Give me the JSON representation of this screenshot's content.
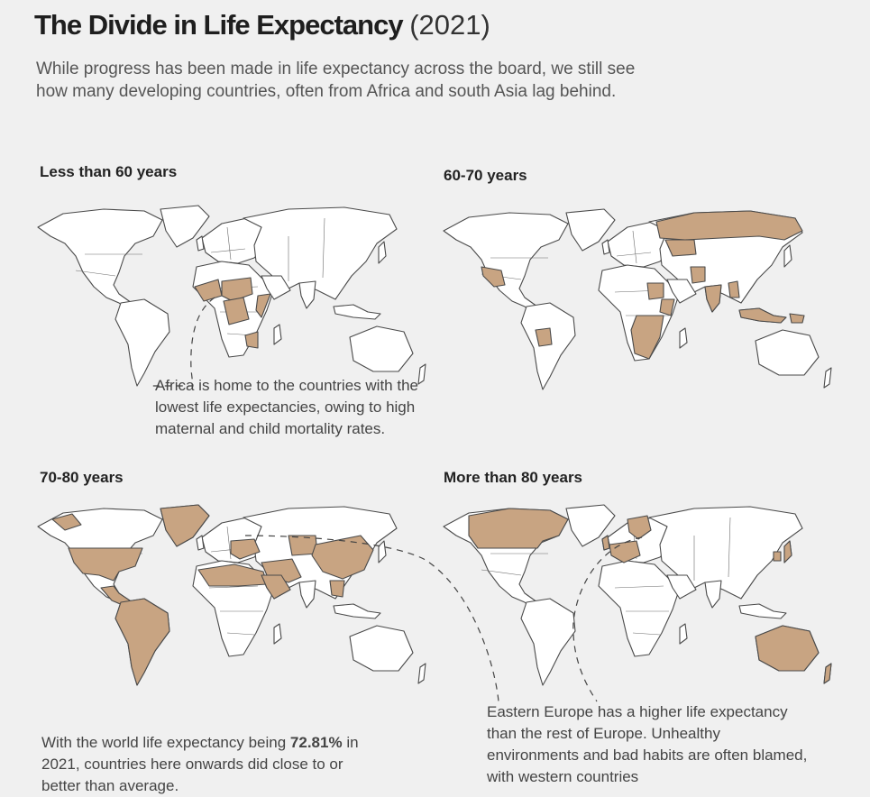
{
  "title": {
    "main": "The Divide in Life Expectancy",
    "year": "(2021)"
  },
  "subtitle": "While progress has been made in life expectancy across the board, we still see how many developing countries, often from Africa and south Asia lag behind.",
  "panels": [
    {
      "label": "Less than 60 years",
      "highlighted_regions": [
        "West Africa (Sahel)",
        "Central Africa",
        "Somalia",
        "South Sudan",
        "Mozambique",
        "Zimbabwe",
        "Lesotho"
      ]
    },
    {
      "label": "60-70 years",
      "highlighted_regions": [
        "Russia",
        "Kazakhstan",
        "India",
        "Pakistan",
        "Myanmar",
        "Indonesia",
        "Papua New Guinea",
        "Mexico",
        "Guatemala",
        "Bolivia",
        "Sudan",
        "Ethiopia",
        "Tanzania",
        "Southern Africa"
      ]
    },
    {
      "label": "70-80 years",
      "highlighted_regions": [
        "Greenland",
        "United States",
        "Canadian Arctic islands",
        "South America",
        "Central America",
        "North Africa",
        "Middle East",
        "Central Asia",
        "China",
        "Eastern Europe",
        "Southeast Asia"
      ]
    },
    {
      "label": "More than 80 years",
      "highlighted_regions": [
        "Canada",
        "Western Europe",
        "Scandinavia",
        "Japan",
        "South Korea",
        "Australia",
        "New Zealand"
      ]
    }
  ],
  "notes": {
    "africa": "Africa is home to the countries with the lowest life expectancies, owing to high maternal and child mortality rates.",
    "world_avg_prefix": "With the world life expectancy being ",
    "world_avg_value": "72.81%",
    "world_avg_suffix": " in 2021, countries here onwards did close to or better than average.",
    "europe": "Eastern Europe has a higher life expectancy than the rest of Europe. Unhealthy environments and bad habits are often blamed, with western countries"
  },
  "colors": {
    "background": "#f0f0f0",
    "land": "#ffffff",
    "highlight": "#c8a482",
    "outline": "#4a4a4a"
  }
}
